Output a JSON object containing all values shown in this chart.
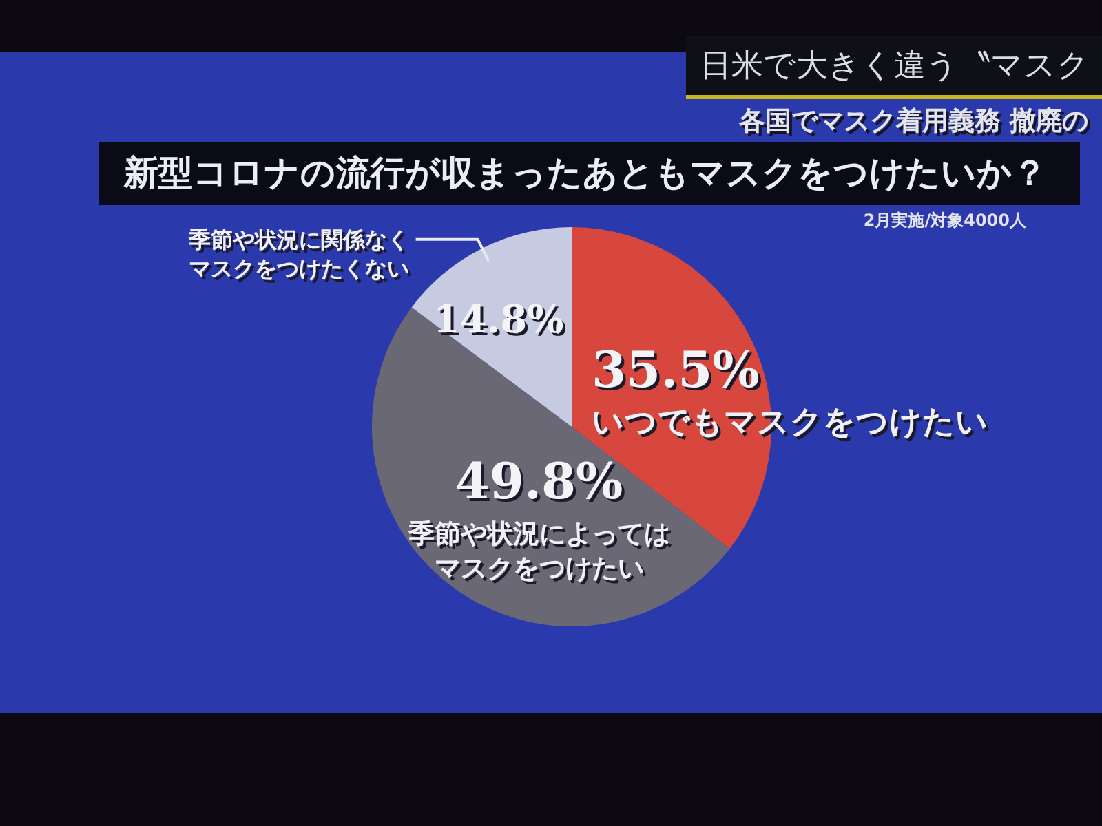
{
  "chart_data": {
    "type": "pie",
    "title": "新型コロナの流行が収まったあともマスクをつけたいか？",
    "annotations": [
      "日米で大きく違う〝マスク",
      "各国でマスク着用義務 撤廃の",
      "2月実施/対象4000人"
    ],
    "categories": [
      "いつでもマスクをつけたい",
      "季節や状況によってはマスクをつけたい",
      "季節や状況に関係なくマスクをつけたくない"
    ],
    "values": [
      35.5,
      49.8,
      14.8
    ],
    "colors": [
      "#d8473d",
      "#6a6875",
      "#c6cbe1"
    ],
    "value_labels": [
      "35.5%",
      "49.8%",
      "14.8%"
    ]
  }
}
